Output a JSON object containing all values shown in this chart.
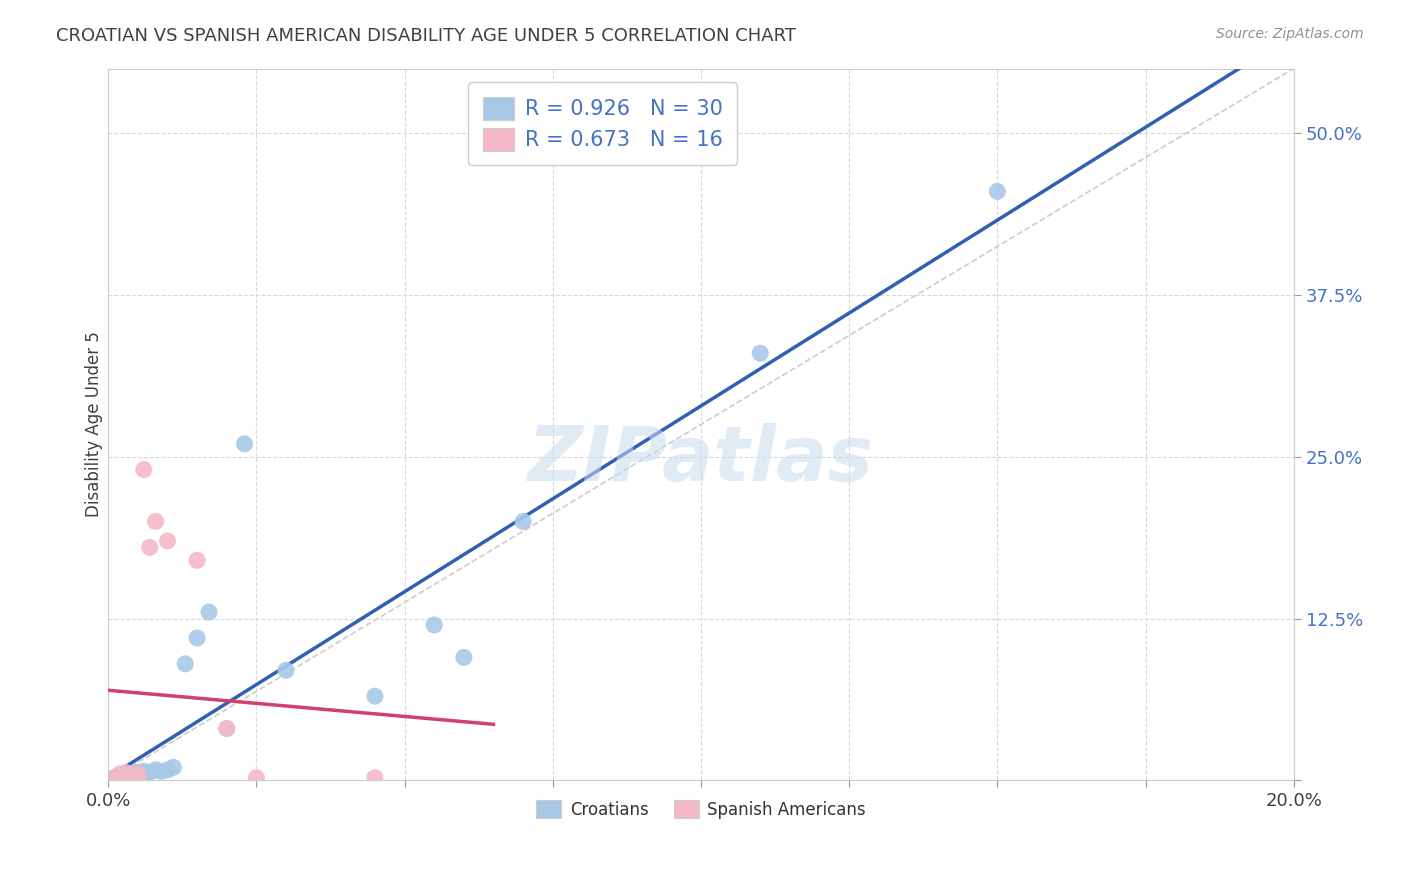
{
  "title": "CROATIAN VS SPANISH AMERICAN DISABILITY AGE UNDER 5 CORRELATION CHART",
  "source": "Source: ZipAtlas.com",
  "ylabel": "Disability Age Under 5",
  "legend_bottom": [
    "Croatians",
    "Spanish Americans"
  ],
  "croatian_R": 0.926,
  "croatian_N": 30,
  "spanish_R": 0.673,
  "spanish_N": 16,
  "croatian_color": "#a8c8e8",
  "spanish_color": "#f4b8c8",
  "croatian_line_color": "#3060b0",
  "spanish_line_color": "#d04070",
  "diagonal_color": "#c0c0c0",
  "xlim": [
    0.0,
    0.2
  ],
  "ylim": [
    0.0,
    0.55
  ],
  "xticks": [
    0.0,
    0.025,
    0.05,
    0.075,
    0.1,
    0.125,
    0.15,
    0.175,
    0.2
  ],
  "xtick_labels": [
    "0.0%",
    "",
    "",
    "",
    "",
    "",
    "",
    "",
    "20.0%"
  ],
  "yticks": [
    0.0,
    0.125,
    0.25,
    0.375,
    0.5
  ],
  "ytick_labels": [
    "",
    "12.5%",
    "25.0%",
    "37.5%",
    "50.0%"
  ],
  "croatian_x": [
    0.001,
    0.001,
    0.002,
    0.002,
    0.002,
    0.003,
    0.003,
    0.004,
    0.004,
    0.005,
    0.005,
    0.006,
    0.006,
    0.007,
    0.008,
    0.009,
    0.01,
    0.011,
    0.013,
    0.015,
    0.017,
    0.02,
    0.023,
    0.03,
    0.045,
    0.055,
    0.06,
    0.07,
    0.11,
    0.15
  ],
  "croatian_y": [
    0.001,
    0.002,
    0.001,
    0.003,
    0.004,
    0.002,
    0.004,
    0.003,
    0.005,
    0.004,
    0.006,
    0.005,
    0.007,
    0.006,
    0.008,
    0.007,
    0.008,
    0.01,
    0.09,
    0.11,
    0.13,
    0.04,
    0.26,
    0.085,
    0.065,
    0.12,
    0.095,
    0.2,
    0.33,
    0.455
  ],
  "spanish_x": [
    0.001,
    0.002,
    0.002,
    0.003,
    0.003,
    0.004,
    0.005,
    0.005,
    0.006,
    0.007,
    0.008,
    0.01,
    0.015,
    0.02,
    0.025,
    0.045
  ],
  "spanish_y": [
    0.001,
    0.003,
    0.005,
    0.002,
    0.006,
    0.004,
    0.003,
    0.005,
    0.24,
    0.18,
    0.2,
    0.185,
    0.17,
    0.04,
    0.002,
    0.002
  ],
  "watermark": "ZIPatlas",
  "grid_color": "#d8d8d8",
  "background_color": "#ffffff",
  "title_color": "#404040",
  "source_color": "#909090",
  "yaxis_label_color": "#404040",
  "yaxis_tick_color": "#4472c4",
  "xaxis_tick_color": "#404040"
}
